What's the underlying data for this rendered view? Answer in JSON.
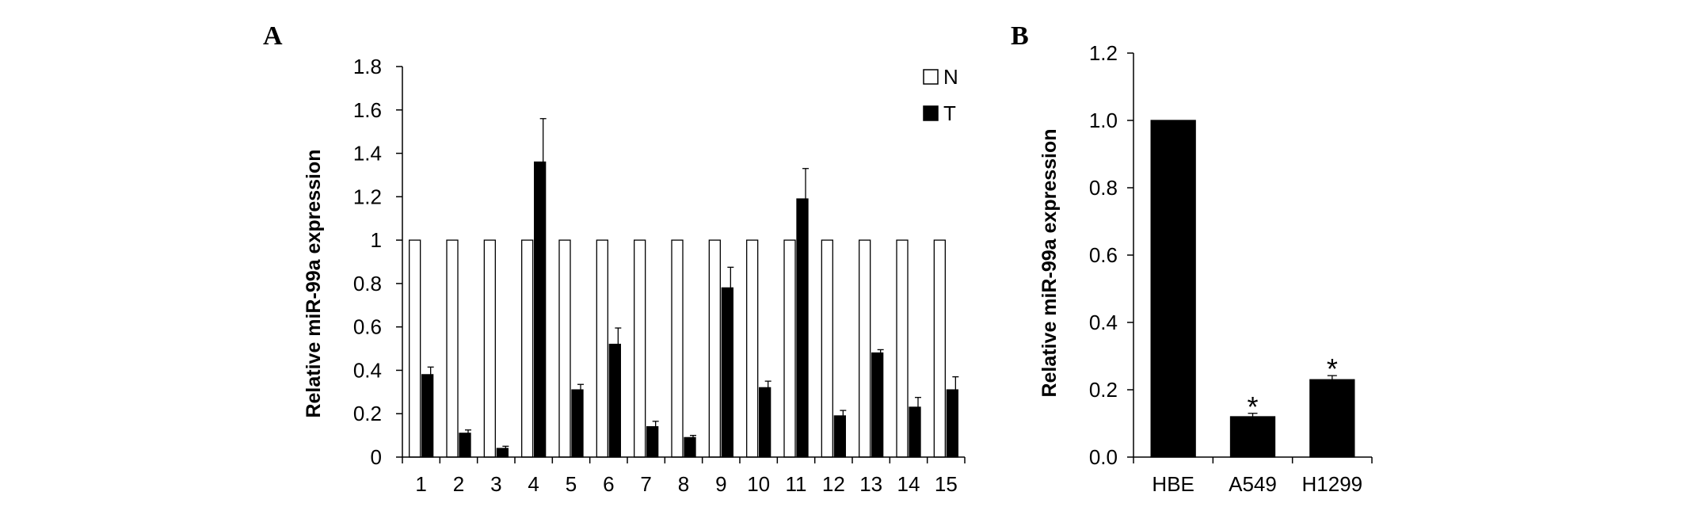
{
  "chart_data": [
    {
      "type": "bar",
      "panel_label": "A",
      "ylabel": "Relative miR-99a expression",
      "xlabel": "",
      "ylim": [
        0,
        1.8
      ],
      "y_ticks": [
        "0",
        "0.2",
        "0.4",
        "0.6",
        "0.8",
        "1",
        "1.2",
        "1.4",
        "1.6",
        "1.8"
      ],
      "categories": [
        "1",
        "2",
        "3",
        "4",
        "5",
        "6",
        "7",
        "8",
        "9",
        "10",
        "11",
        "12",
        "13",
        "14",
        "15"
      ],
      "legend_position": "top-right",
      "series": [
        {
          "name": "N",
          "color": "#ffffff",
          "values": [
            1,
            1,
            1,
            1,
            1,
            1,
            1,
            1,
            1,
            1,
            1,
            1,
            1,
            1,
            1
          ],
          "errors": [
            0,
            0,
            0,
            0,
            0,
            0,
            0,
            0,
            0,
            0,
            0,
            0,
            0,
            0,
            0
          ]
        },
        {
          "name": "T",
          "color": "#000000",
          "values": [
            0.38,
            0.11,
            0.04,
            1.36,
            0.31,
            0.52,
            0.14,
            0.09,
            0.78,
            0.32,
            1.19,
            0.19,
            0.48,
            0.23,
            0.31
          ],
          "errors": [
            0.035,
            0.015,
            0.01,
            0.2,
            0.025,
            0.075,
            0.025,
            0.01,
            0.095,
            0.03,
            0.14,
            0.025,
            0.015,
            0.045,
            0.06
          ]
        }
      ]
    },
    {
      "type": "bar",
      "panel_label": "B",
      "ylabel": "Relative miR-99a expression",
      "xlabel": "",
      "ylim": [
        0,
        1.2
      ],
      "y_ticks": [
        "0.0",
        "0.2",
        "0.4",
        "0.6",
        "0.8",
        "1.0",
        "1.2"
      ],
      "categories": [
        "HBE",
        "A549",
        "H1299"
      ],
      "series": [
        {
          "color": "#000000",
          "values": [
            1.0,
            0.12,
            0.23
          ],
          "errors": [
            0,
            0.01,
            0.012
          ]
        }
      ],
      "annotations": [
        "",
        "*",
        "*"
      ]
    }
  ]
}
